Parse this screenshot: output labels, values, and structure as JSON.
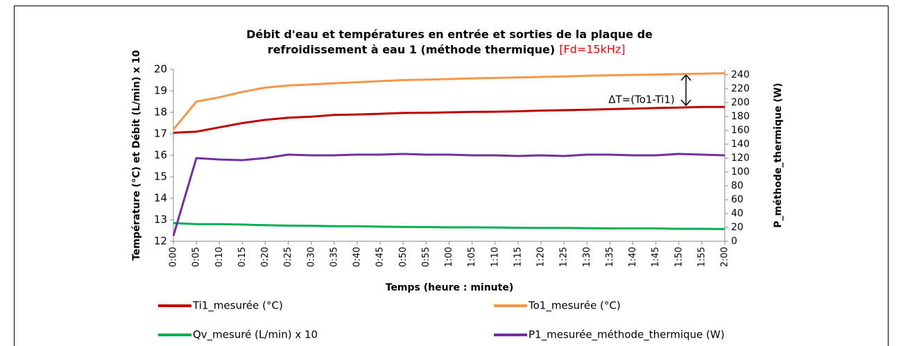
{
  "chart_data": {
    "type": "line",
    "title": "Débit d'eau et températures en entrée et sorties de la plaque de refroidissement à eau 1 (méthode thermique)",
    "title_note": "[Fd=15kHz]",
    "x_label": "Temps (heure : minute)",
    "y_label": "Température (°C) et Débit (L/min) x 10",
    "y2_label": "P_méthode_thermique (W)",
    "annotation": "ΔT=(To1-Ti1)",
    "categories": [
      "0:00",
      "0:05",
      "0:10",
      "0:15",
      "0:20",
      "0:25",
      "0:30",
      "0:35",
      "0:40",
      "0:45",
      "0:50",
      "0:55",
      "1:00",
      "1:05",
      "1:10",
      "1:15",
      "1:20",
      "1:25",
      "1:30",
      "1:35",
      "1:40",
      "1:45",
      "1:50",
      "1:55",
      "2:00"
    ],
    "ylim": [
      12,
      20
    ],
    "yticks": [
      12,
      13,
      14,
      15,
      16,
      17,
      18,
      19,
      20
    ],
    "y2lim": [
      0,
      248
    ],
    "y2ticks": [
      0,
      20,
      40,
      60,
      80,
      100,
      120,
      140,
      160,
      180,
      200,
      220,
      240
    ],
    "grid": false,
    "legend": "bottom",
    "series": [
      {
        "name": "Ti1_mesurée (°C)",
        "color": "#c00000",
        "values": [
          17.05,
          17.1,
          17.3,
          17.5,
          17.65,
          17.75,
          17.8,
          17.88,
          17.9,
          17.93,
          17.97,
          17.98,
          18.0,
          18.02,
          18.03,
          18.05,
          18.08,
          18.1,
          18.12,
          18.15,
          18.17,
          18.2,
          18.22,
          18.25,
          18.25
        ]
      },
      {
        "name": "To1_mesurée (°C)",
        "color": "#f79646",
        "values": [
          17.2,
          18.5,
          18.7,
          18.95,
          19.15,
          19.25,
          19.3,
          19.35,
          19.4,
          19.45,
          19.5,
          19.52,
          19.55,
          19.58,
          19.6,
          19.62,
          19.65,
          19.67,
          19.7,
          19.72,
          19.74,
          19.76,
          19.78,
          19.8,
          19.82
        ]
      },
      {
        "name": "Qv_mesuré (L/min) x 10",
        "color": "#00b050",
        "values": [
          12.85,
          12.8,
          12.8,
          12.78,
          12.75,
          12.73,
          12.72,
          12.7,
          12.7,
          12.68,
          12.67,
          12.66,
          12.65,
          12.65,
          12.64,
          12.63,
          12.62,
          12.62,
          12.61,
          12.6,
          12.6,
          12.6,
          12.58,
          12.58,
          12.57
        ]
      },
      {
        "name": "P1_mesurée_méthode_thermique (W)",
        "color": "#7030a0",
        "axis": "y2",
        "values": [
          8,
          120,
          118,
          117,
          120,
          125,
          124,
          124,
          125,
          125,
          126,
          125,
          125,
          124,
          124,
          123,
          124,
          123,
          125,
          125,
          124,
          124,
          126,
          125,
          124
        ]
      }
    ]
  }
}
